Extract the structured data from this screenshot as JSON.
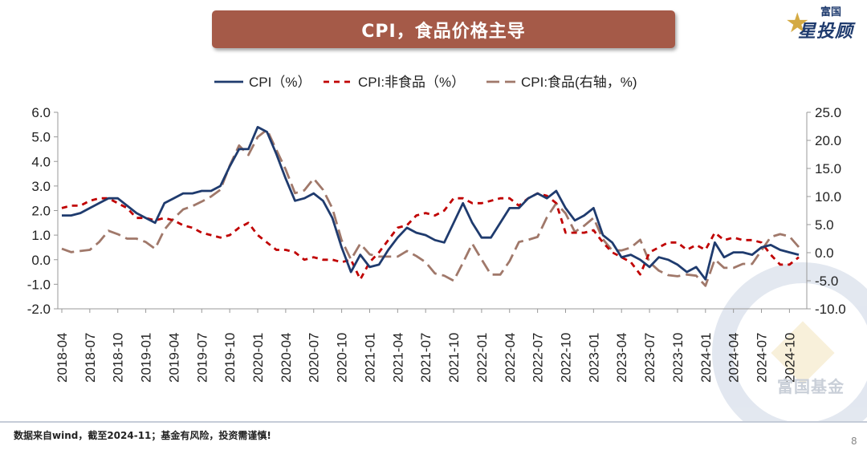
{
  "slide": {
    "title": "CPI，食品价格主导",
    "brand_top": "富国",
    "brand_main": "星投顾",
    "watermark": "富国基金",
    "footnote": "数据来自wind，截至2024-11；基金有风险，投资需谨慎!",
    "page_number": "8"
  },
  "colors": {
    "cpi": "#1f3b6e",
    "nonfood": "#c00000",
    "food": "#a0786a",
    "title_bg": "#a55a48"
  },
  "chart_data": {
    "type": "line",
    "legend": [
      "CPI（%）",
      "CPI:非食品（%）",
      "CPI:食品(右轴，%)"
    ],
    "legend_position": "top",
    "y_left": {
      "min": -2.0,
      "max": 6.0,
      "step": 1.0,
      "ticks": [
        "6.0",
        "5.0",
        "4.0",
        "3.0",
        "2.0",
        "1.0",
        "0.0",
        "-1.0",
        "-2.0"
      ]
    },
    "y_right": {
      "min": -10.0,
      "max": 25.0,
      "step": 5.0,
      "ticks": [
        "25.0",
        "20.0",
        "15.0",
        "10.0",
        "5.0",
        "0.0",
        "-5.0",
        "-10.0"
      ]
    },
    "x_tick_labels": [
      "2018-04",
      "2018-07",
      "2018-10",
      "2019-01",
      "2019-04",
      "2019-07",
      "2019-10",
      "2020-01",
      "2020-04",
      "2020-07",
      "2020-10",
      "2021-01",
      "2021-04",
      "2021-07",
      "2021-10",
      "2022-01",
      "2022-04",
      "2022-07",
      "2022-10",
      "2023-01",
      "2023-04",
      "2023-07",
      "2023-10",
      "2024-01",
      "2024-04",
      "2024-07",
      "2024-10"
    ],
    "start_month": "2018-04",
    "series": [
      {
        "name": "CPI（%）",
        "axis": "left",
        "style": "solid",
        "values": [
          1.8,
          1.8,
          1.9,
          2.1,
          2.3,
          2.5,
          2.5,
          2.2,
          1.9,
          1.7,
          1.5,
          2.3,
          2.5,
          2.7,
          2.7,
          2.8,
          2.8,
          3.0,
          3.8,
          4.5,
          4.5,
          5.4,
          5.2,
          4.3,
          3.3,
          2.4,
          2.5,
          2.7,
          2.4,
          1.7,
          0.5,
          -0.5,
          0.2,
          -0.3,
          -0.2,
          0.4,
          0.9,
          1.3,
          1.1,
          1.0,
          0.8,
          0.7,
          1.5,
          2.3,
          1.5,
          0.9,
          0.9,
          1.5,
          2.1,
          2.1,
          2.5,
          2.7,
          2.5,
          2.8,
          2.1,
          1.6,
          1.8,
          2.1,
          1.0,
          0.7,
          0.1,
          0.2,
          0.0,
          -0.3,
          0.1,
          0.0,
          -0.2,
          -0.5,
          -0.3,
          -0.8,
          0.7,
          0.1,
          0.3,
          0.3,
          0.2,
          0.5,
          0.6,
          0.4,
          0.3,
          0.2
        ]
      },
      {
        "name": "CPI:非食品（%）",
        "axis": "left",
        "style": "dashed",
        "values": [
          2.1,
          2.2,
          2.2,
          2.4,
          2.5,
          2.5,
          2.3,
          2.1,
          1.7,
          1.7,
          1.6,
          1.7,
          1.6,
          1.4,
          1.3,
          1.1,
          1.0,
          0.9,
          1.0,
          1.3,
          1.5,
          1.0,
          0.7,
          0.4,
          0.4,
          0.3,
          0.0,
          0.1,
          0.0,
          0.0,
          -0.1,
          0.0,
          -0.8,
          -0.1,
          0.3,
          0.8,
          1.3,
          1.4,
          1.8,
          1.9,
          1.8,
          2.0,
          2.5,
          2.5,
          2.3,
          2.3,
          2.4,
          2.5,
          2.5,
          2.2,
          2.5,
          2.7,
          2.6,
          2.3,
          1.1,
          1.1,
          1.1,
          1.2,
          0.7,
          0.3,
          0.1,
          -0.1,
          -0.6,
          0.3,
          0.5,
          0.7,
          0.7,
          0.4,
          0.6,
          0.4,
          1.1,
          0.8,
          0.9,
          0.8,
          0.8,
          0.7,
          0.2,
          -0.2,
          -0.2,
          0.1
        ]
      },
      {
        "name": "CPI:食品(右轴，%)",
        "axis": "right",
        "style": "longdash",
        "values": [
          0.7,
          0.1,
          0.3,
          0.5,
          1.9,
          3.9,
          3.3,
          2.5,
          2.5,
          1.9,
          0.7,
          4.1,
          6.1,
          7.7,
          8.3,
          9.1,
          10.0,
          11.2,
          15.5,
          19.1,
          17.4,
          20.6,
          21.9,
          18.3,
          14.8,
          10.6,
          11.1,
          13.2,
          11.2,
          7.9,
          2.2,
          -1.2,
          1.6,
          -0.3,
          -0.7,
          -0.7,
          -0.7,
          0.3,
          -0.6,
          -1.7,
          -3.7,
          -4.1,
          -5.0,
          -1.8,
          1.6,
          -1.2,
          -3.9,
          -3.9,
          -1.5,
          1.9,
          2.3,
          2.8,
          6.3,
          8.8,
          7.0,
          3.7,
          4.8,
          6.2,
          2.4,
          0.4,
          0.4,
          0.9,
          2.3,
          -1.7,
          -3.2,
          -4.0,
          -4.2,
          -3.9,
          -4.1,
          -5.9,
          -1.2,
          -2.7,
          -2.7,
          -2.0,
          -2.0,
          0.4,
          2.8,
          3.3,
          2.9,
          1.0
        ]
      }
    ]
  }
}
